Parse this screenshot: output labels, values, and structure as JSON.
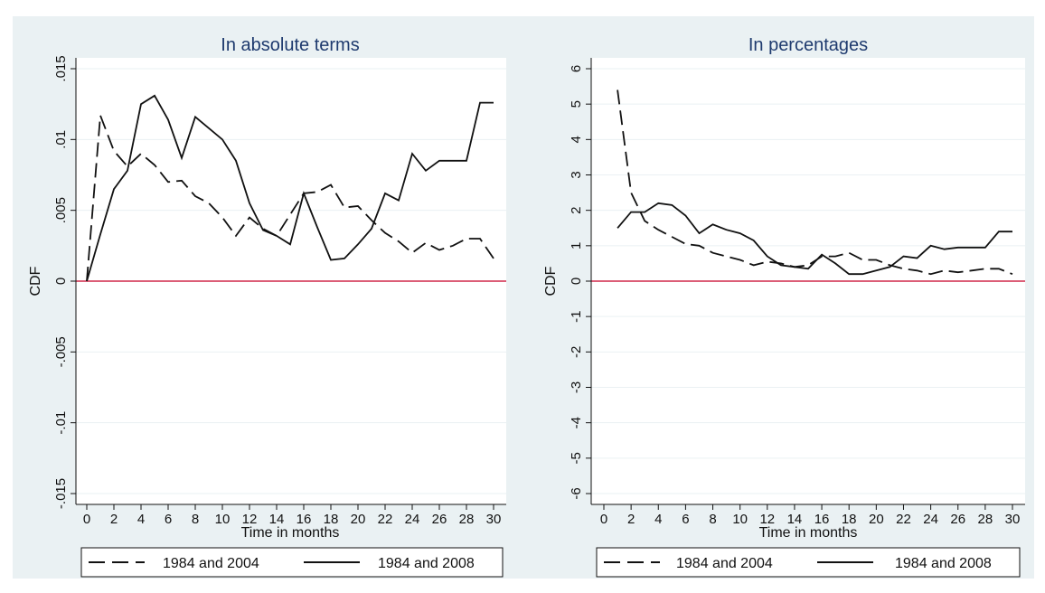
{
  "colors": {
    "frame": "#eaf1f3",
    "plot_bg": "#ffffff",
    "grid": "#eaf1f3",
    "line": "#111111",
    "zero_line": "#d0284a",
    "title": "#1e3a6e"
  },
  "legend_labels": [
    "1984 and 2004",
    "1984 and 2008"
  ],
  "chart_data": [
    {
      "type": "line",
      "title": "In absolute terms",
      "xlabel": "Time in months",
      "ylabel": "CDF",
      "xlim": [
        0,
        30
      ],
      "ylim": [
        -0.015,
        0.015
      ],
      "x_ticks": [
        0,
        2,
        4,
        6,
        8,
        10,
        12,
        14,
        16,
        18,
        20,
        22,
        24,
        26,
        28,
        30
      ],
      "y_ticks": [
        -0.015,
        -0.01,
        -0.005,
        0,
        0.005,
        0.01,
        0.015
      ],
      "y_tick_labels": [
        "-.015",
        "-.01",
        "-.005",
        "0",
        ".005",
        ".01",
        ".015"
      ],
      "reference_line": 0,
      "grid": true,
      "legend": "bottom",
      "series": [
        {
          "name": "1984 and 2004",
          "style": "dashed",
          "x": [
            0,
            1,
            2,
            3,
            4,
            5,
            6,
            7,
            8,
            9,
            10,
            11,
            12,
            13,
            14,
            15,
            16,
            17,
            18,
            19,
            20,
            21,
            22,
            23,
            24,
            25,
            26,
            27,
            28,
            29,
            30
          ],
          "values": [
            0,
            0.0117,
            0.0092,
            0.0081,
            0.009,
            0.0082,
            0.007,
            0.0071,
            0.006,
            0.0055,
            0.0045,
            0.0032,
            0.0045,
            0.0037,
            0.0032,
            0.0047,
            0.0062,
            0.0063,
            0.0068,
            0.0052,
            0.0053,
            0.0043,
            0.0034,
            0.0028,
            0.002,
            0.0027,
            0.0022,
            0.0025,
            0.003,
            0.003,
            0.0016
          ]
        },
        {
          "name": "1984 and 2008",
          "style": "solid",
          "x": [
            0,
            1,
            2,
            3,
            4,
            5,
            6,
            7,
            8,
            9,
            10,
            11,
            12,
            13,
            14,
            15,
            16,
            17,
            18,
            19,
            20,
            21,
            22,
            23,
            24,
            25,
            26,
            27,
            28,
            29,
            30
          ],
          "values": [
            0,
            0.0033,
            0.0065,
            0.0078,
            0.0125,
            0.0131,
            0.0114,
            0.0087,
            0.0116,
            0.0108,
            0.01,
            0.0085,
            0.0055,
            0.0036,
            0.0032,
            0.0026,
            0.0062,
            0.0038,
            0.0015,
            0.0016,
            0.0026,
            0.0037,
            0.0062,
            0.0057,
            0.009,
            0.0078,
            0.0085,
            0.0085,
            0.0085,
            0.0126,
            0.0126
          ]
        }
      ]
    },
    {
      "type": "line",
      "title": "In percentages",
      "xlabel": "Time in months",
      "ylabel": "CDF",
      "xlim": [
        0,
        30
      ],
      "ylim": [
        -6,
        6
      ],
      "x_ticks": [
        0,
        2,
        4,
        6,
        8,
        10,
        12,
        14,
        16,
        18,
        20,
        22,
        24,
        26,
        28,
        30
      ],
      "y_ticks": [
        -6,
        -5,
        -4,
        -3,
        -2,
        -1,
        0,
        1,
        2,
        3,
        4,
        5,
        6
      ],
      "y_tick_labels": [
        "-6",
        "-5",
        "-4",
        "-3",
        "-2",
        "-1",
        "0",
        "1",
        "2",
        "3",
        "4",
        "5",
        "6"
      ],
      "reference_line": 0,
      "grid": true,
      "legend": "bottom",
      "series": [
        {
          "name": "1984 and 2004",
          "style": "dashed",
          "x": [
            1,
            2,
            3,
            4,
            5,
            6,
            7,
            8,
            9,
            10,
            11,
            12,
            13,
            14,
            15,
            16,
            17,
            18,
            19,
            20,
            21,
            22,
            23,
            24,
            25,
            26,
            27,
            28,
            29,
            30
          ],
          "values": [
            5.4,
            2.5,
            1.7,
            1.45,
            1.25,
            1.05,
            1.0,
            0.8,
            0.7,
            0.6,
            0.45,
            0.55,
            0.5,
            0.4,
            0.45,
            0.7,
            0.7,
            0.8,
            0.6,
            0.6,
            0.45,
            0.35,
            0.3,
            0.2,
            0.3,
            0.25,
            0.3,
            0.35,
            0.35,
            0.2
          ]
        },
        {
          "name": "1984 and 2008",
          "style": "solid",
          "x": [
            1,
            2,
            3,
            4,
            5,
            6,
            7,
            8,
            9,
            10,
            11,
            12,
            13,
            14,
            15,
            16,
            17,
            18,
            19,
            20,
            21,
            22,
            23,
            24,
            25,
            26,
            27,
            28,
            29,
            30
          ],
          "values": [
            1.5,
            1.95,
            1.95,
            2.2,
            2.15,
            1.85,
            1.35,
            1.6,
            1.45,
            1.35,
            1.15,
            0.7,
            0.45,
            0.4,
            0.35,
            0.75,
            0.5,
            0.2,
            0.2,
            0.3,
            0.4,
            0.7,
            0.65,
            1.0,
            0.9,
            0.95,
            0.95,
            0.95,
            1.4,
            1.4
          ]
        }
      ]
    }
  ]
}
